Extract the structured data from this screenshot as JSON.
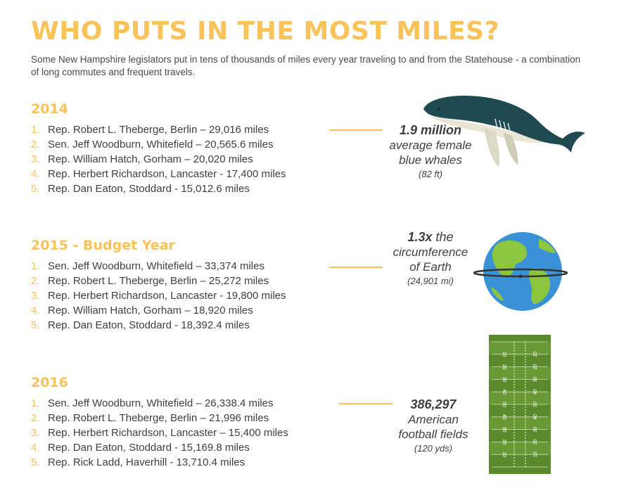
{
  "title": "WHO PUTS IN THE MOST MILES?",
  "subtitle": "Some New Hampshire legislators put in tens of thousands of miles every year traveling to and from the Statehouse - a combination of long commutes and frequent travels.",
  "colors": {
    "accent": "#f9c35a",
    "text": "#3f3f3f",
    "ocean": "#3a92d6",
    "land": "#8cc63f",
    "field": "#5a8a2b",
    "whale": "#1f4a52"
  },
  "sections": [
    {
      "year": "2014",
      "items": [
        {
          "num": "1.",
          "text": "Rep. Robert L. Theberge, Berlin – 29,016 miles"
        },
        {
          "num": "2.",
          "text": "Sen. Jeff Woodburn, Whitefield – 20,565.6 miles"
        },
        {
          "num": "3.",
          "text": "Rep. William Hatch, Gorham – 20,020 miles"
        },
        {
          "num": "4.",
          "text": "Rep. Herbert Richardson, Lancaster - 17,400 miles"
        },
        {
          "num": "5.",
          "text": "Rep. Dan Eaton, Stoddard - 15,012.6 miles"
        }
      ],
      "fact": {
        "big": "1.9 million",
        "line1": "average female",
        "line2": "blue whales",
        "unit": "(82 ft)"
      },
      "icon": "whale-icon"
    },
    {
      "year": "2015 - Budget Year",
      "items": [
        {
          "num": "1.",
          "text": "Sen. Jeff Woodburn, Whitefield – 33,374 miles"
        },
        {
          "num": "2.",
          "text": "Rep. Robert L. Theberge, Berlin – 25,272 miles"
        },
        {
          "num": "3.",
          "text": "Rep. Herbert Richardson, Lancaster - 19,800 miles"
        },
        {
          "num": "4.",
          "text": "Rep. William Hatch, Gorham – 18,920 miles"
        },
        {
          "num": "5.",
          "text": "Rep. Dan Eaton, Stoddard - 18,392.4 miles"
        }
      ],
      "fact": {
        "big": "1.3x",
        "big_suffix": " the",
        "line1": "circumference",
        "line2": "of Earth",
        "unit": "(24,901 mi)"
      },
      "icon": "earth-icon"
    },
    {
      "year": "2016",
      "items": [
        {
          "num": "1.",
          "text": "Sen. Jeff Woodburn, Whitefield – 26,338.4 miles"
        },
        {
          "num": "2.",
          "text": "Rep. Robert L. Theberge, Berlin – 21,996 miles"
        },
        {
          "num": "3.",
          "text": "Rep. Herbert Richardson, Lancaster – 15,400 miles"
        },
        {
          "num": "4.",
          "text": "Rep. Dan Eaton, Stoddard - 15,169.8 miles"
        },
        {
          "num": "5.",
          "text": "Rep. Rick Ladd, Haverhill - 13,710.4 miles"
        }
      ],
      "fact": {
        "big": "386,297",
        "line1": "American",
        "line2": "football fields",
        "unit": "(120 yds)"
      },
      "icon": "football-field-icon",
      "field_markers": [
        "10",
        "20",
        "30",
        "40",
        "50",
        "40",
        "30",
        "20",
        "10"
      ]
    }
  ]
}
